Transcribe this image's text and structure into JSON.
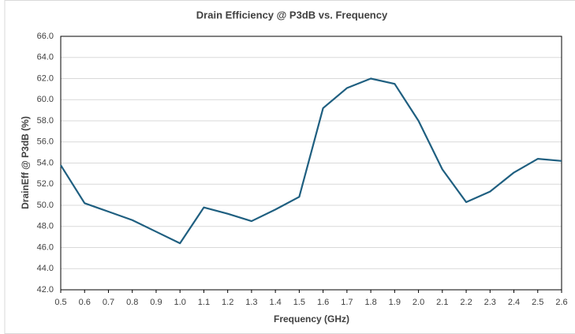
{
  "chart_data": {
    "type": "line",
    "title": "Drain Efficiency @ P3dB vs. Frequency",
    "x_label": "Frequency (GHz)",
    "y_label": "DrainEff @ P3dB (%)",
    "x": [
      0.5,
      0.6,
      0.7,
      0.8,
      0.9,
      1.0,
      1.1,
      1.2,
      1.3,
      1.4,
      1.5,
      1.6,
      1.7,
      1.8,
      1.9,
      2.0,
      2.1,
      2.2,
      2.3,
      2.4,
      2.5,
      2.6
    ],
    "series": [
      {
        "name": "DrainEff",
        "color": "#1f5f80",
        "values": [
          53.8,
          50.2,
          49.4,
          48.6,
          47.5,
          46.4,
          49.8,
          49.2,
          48.5,
          49.6,
          50.8,
          59.2,
          61.1,
          62.0,
          61.5,
          58.0,
          53.4,
          50.3,
          51.3,
          53.1,
          54.4,
          54.2
        ]
      }
    ],
    "xlim": [
      0.5,
      2.6
    ],
    "xticks": [
      0.5,
      0.6,
      0.7,
      0.8,
      0.9,
      {
        "value": 1,
        "label": "1.0"
      },
      1.1,
      1.2,
      1.3,
      1.4,
      1.5,
      1.6,
      1.7,
      1.8,
      1.9,
      {
        "value": 2,
        "label": "2.0"
      },
      2.1,
      2.2,
      2.3,
      2.4,
      2.5,
      2.6
    ],
    "ylim": [
      42,
      66
    ],
    "yticks": [
      {
        "value": 42,
        "label": "42.0"
      },
      {
        "value": 44,
        "label": "44.0"
      },
      {
        "value": 46,
        "label": "46.0"
      },
      {
        "value": 48,
        "label": "48.0"
      },
      {
        "value": 50,
        "label": "50.0"
      },
      {
        "value": 52,
        "label": "52.0"
      },
      {
        "value": 54,
        "label": "54.0"
      },
      {
        "value": 56,
        "label": "56.0"
      },
      {
        "value": 58,
        "label": "58.0"
      },
      {
        "value": 60,
        "label": "60.0"
      },
      {
        "value": 62,
        "label": "62.0"
      },
      {
        "value": 64,
        "label": "64.0"
      },
      {
        "value": 66,
        "label": "66.0"
      }
    ],
    "grid": true
  }
}
